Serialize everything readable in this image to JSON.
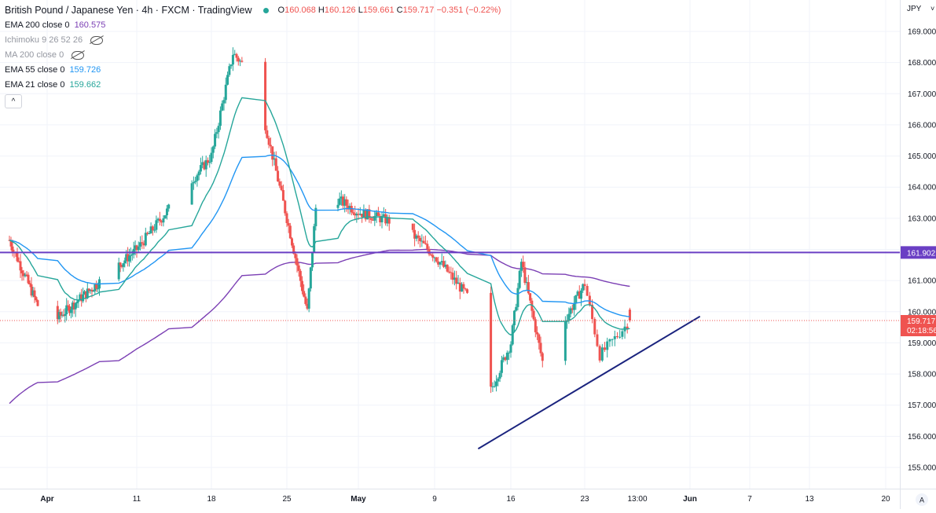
{
  "header": {
    "symbol_title": "British Pound / Japanese Yen · 4h · FXCM · TradingView",
    "ohlc": {
      "open_label": "O",
      "open": "160.068",
      "high_label": "H",
      "high": "160.126",
      "low_label": "L",
      "low": "159.661",
      "close_label": "C",
      "close": "159.717",
      "change": "−0.351 (−0.22%)"
    }
  },
  "indicators": [
    {
      "name": "EMA 200 close 0",
      "value": "160.575",
      "color": "#7b3fb4",
      "hidden": false
    },
    {
      "name": "Ichimoku 9 26 52 26",
      "value": "",
      "color": "#9598a1",
      "hidden": true
    },
    {
      "name": "MA 200 close 0",
      "value": "",
      "color": "#9598a1",
      "hidden": true
    },
    {
      "name": "EMA 55 close 0",
      "value": "159.726",
      "color": "#2196f3",
      "hidden": false
    },
    {
      "name": "EMA 21 close 0",
      "value": "159.662",
      "color": "#26a69a",
      "hidden": false
    }
  ],
  "collapse_symbol": "^",
  "price_axis": {
    "currency": "JPY",
    "ticks": [
      "169.000",
      "168.000",
      "167.000",
      "166.000",
      "165.000",
      "164.000",
      "163.000",
      "162.000",
      "161.000",
      "160.000",
      "159.000",
      "158.000",
      "157.000",
      "156.000",
      "155.000"
    ],
    "horizontal_level_label": "161.902",
    "last_price_label": "159.717",
    "countdown_label": "02:18:56",
    "auto_label": "A"
  },
  "time_axis": {
    "ticks": [
      "Apr",
      "11",
      "18",
      "25",
      "May",
      "9",
      "16",
      "23",
      "13:00",
      "Jun",
      "7",
      "13",
      "20"
    ]
  },
  "colors": {
    "up": "#26a69a",
    "down": "#ef5350",
    "ema200": "#7b3fb4",
    "ema55": "#2196f3",
    "ema21": "#26a69a",
    "level_line": "#6a3fc4",
    "trend_line": "#1a237e",
    "last_price": "#ef5350",
    "grid": "#f0f3fa"
  },
  "chart_data": {
    "type": "candlestick",
    "symbol": "GBPJPY",
    "timeframe": "4h",
    "ylim": [
      154.7,
      169.5
    ],
    "horizontal_level": 161.902,
    "last_close": 159.717,
    "trend_line": {
      "from": {
        "date": "May 13",
        "price": 155.6
      },
      "to": {
        "date": "Jun 2",
        "price": 159.85
      }
    },
    "key_points": [
      {
        "date": "Mar 28",
        "close": 162.3
      },
      {
        "date": "Apr 1",
        "close": 159.5
      },
      {
        "date": "Apr 11",
        "close": 162.0
      },
      {
        "date": "Apr 14",
        "close": 163.3
      },
      {
        "date": "Apr 18",
        "close": 165.0
      },
      {
        "date": "Apr 20",
        "close": 168.3
      },
      {
        "date": "Apr 22",
        "close": 167.5
      },
      {
        "date": "Apr 25",
        "close": 163.0
      },
      {
        "date": "Apr 27",
        "close": 160.0
      },
      {
        "date": "Apr 28",
        "close": 164.0
      },
      {
        "date": "May 2",
        "close": 163.2
      },
      {
        "date": "May 6",
        "close": 162.8
      },
      {
        "date": "May 9",
        "close": 161.8
      },
      {
        "date": "May 12",
        "close": 160.5
      },
      {
        "date": "May 13",
        "close": 156.5
      },
      {
        "date": "May 16",
        "close": 159.0
      },
      {
        "date": "May 17",
        "close": 161.6
      },
      {
        "date": "May 19",
        "close": 158.4
      },
      {
        "date": "May 23",
        "close": 160.9
      },
      {
        "date": "May 24",
        "close": 158.6
      },
      {
        "date": "May 26",
        "close": 159.7
      }
    ]
  }
}
